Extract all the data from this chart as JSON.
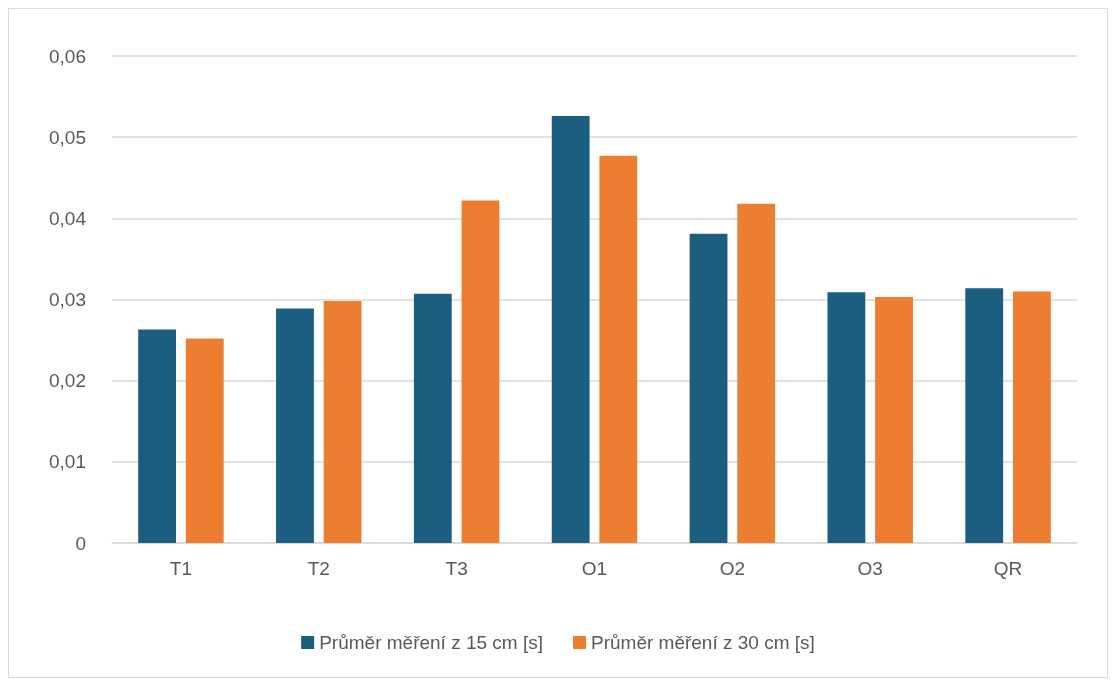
{
  "chart_data": {
    "type": "bar",
    "categories": [
      "T1",
      "T2",
      "T3",
      "O1",
      "O2",
      "O3",
      "QR"
    ],
    "series": [
      {
        "name": "Průměr měření z 15 cm [s]",
        "color": "#1b5e80",
        "values": [
          0.0263,
          0.0289,
          0.0307,
          0.0526,
          0.0381,
          0.0309,
          0.0314
        ]
      },
      {
        "name": "Průměr měření z 30 cm [s]",
        "color": "#ed7d31",
        "values": [
          0.0252,
          0.0298,
          0.0422,
          0.0477,
          0.0418,
          0.0303,
          0.031
        ]
      }
    ],
    "ylim": [
      0,
      0.06
    ],
    "yticks": [
      0,
      {
        "value": 0.01,
        "label": "0,01"
      },
      {
        "value": 0.02,
        "label": "0,02"
      },
      {
        "value": 0.03,
        "label": "0,03"
      },
      {
        "value": 0.04,
        "label": "0,04"
      },
      {
        "value": 0.05,
        "label": "0,05"
      },
      {
        "value": 0.06,
        "label": "0,06"
      }
    ],
    "grid": "y",
    "legend": "bottom"
  }
}
